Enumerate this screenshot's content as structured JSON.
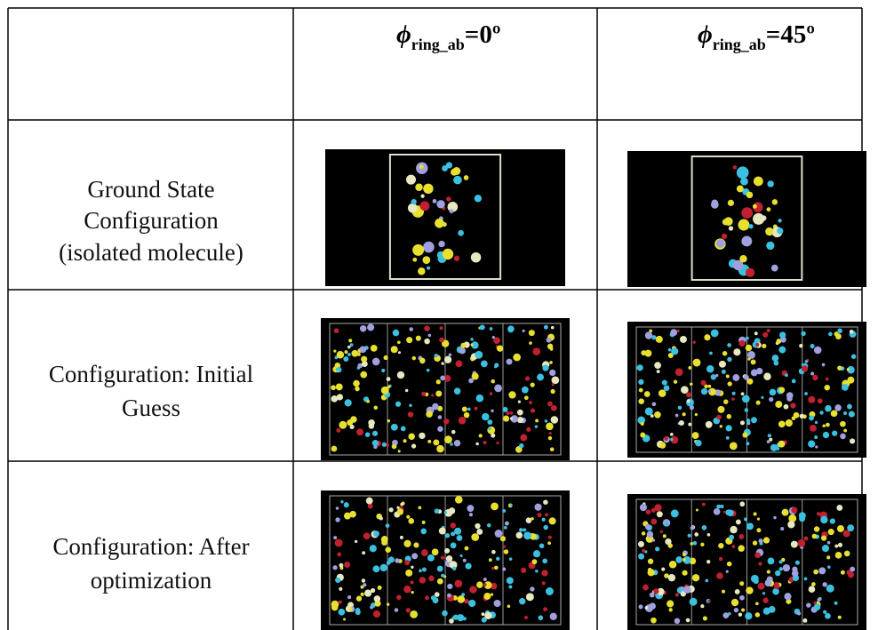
{
  "table": {
    "header": [
      {
        "symbol": "ϕ",
        "subscript": "ring_ab",
        "rest": "=0º"
      },
      {
        "symbol": "ϕ",
        "subscript": "ring_ab",
        "rest": "=45º"
      }
    ],
    "rows": [
      {
        "label": [
          "Ground State",
          "Configuration",
          "(isolated molecule)"
        ]
      },
      {
        "label": [
          "Configuration: Initial",
          "Guess"
        ]
      },
      {
        "label": [
          "Configuration: After",
          "optimization"
        ]
      }
    ]
  }
}
